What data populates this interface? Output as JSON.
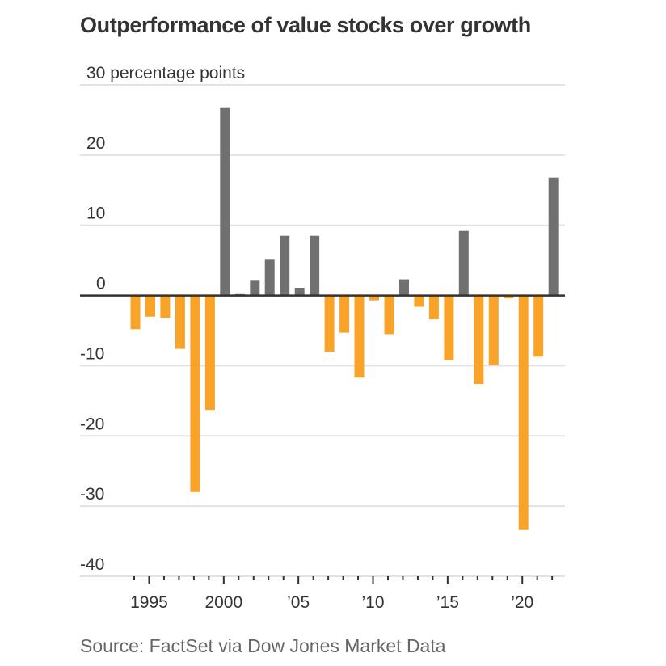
{
  "chart_data": {
    "type": "bar",
    "title": "Outperformance of value stocks over growth",
    "ylabel": "percentage points",
    "xlabel": "",
    "unit_label": "30 percentage points",
    "ylim": [
      -40,
      30
    ],
    "yticks": [
      30,
      20,
      10,
      0,
      -10,
      -20,
      -30,
      -40
    ],
    "ytick_labels": [
      "30 percentage points",
      "20",
      "10",
      "0",
      "-10",
      "-20",
      "-30",
      "-40"
    ],
    "xticks_labeled": [
      {
        "year": 1995,
        "label": "1995"
      },
      {
        "year": 2000,
        "label": "2000"
      },
      {
        "year": 2005,
        "label": "’05"
      },
      {
        "year": 2010,
        "label": "’10"
      },
      {
        "year": 2015,
        "label": "’15"
      },
      {
        "year": 2020,
        "label": "’20"
      }
    ],
    "grid": true,
    "categories": [
      1994,
      1995,
      1996,
      1997,
      1998,
      1999,
      2000,
      2001,
      2002,
      2003,
      2004,
      2005,
      2006,
      2007,
      2008,
      2009,
      2010,
      2011,
      2012,
      2013,
      2014,
      2015,
      2016,
      2017,
      2018,
      2019,
      2020,
      2021,
      2022
    ],
    "values": [
      -4.8,
      -3.0,
      -3.2,
      -7.6,
      -28.0,
      -16.3,
      26.7,
      0.2,
      2.1,
      5.1,
      8.5,
      1.1,
      8.5,
      -8.0,
      -5.3,
      -11.7,
      -0.7,
      -5.5,
      2.3,
      -1.6,
      -3.4,
      -9.2,
      9.2,
      -12.6,
      -9.9,
      -0.4,
      -33.4,
      -8.7,
      16.8
    ],
    "colors": {
      "positive": "#707070",
      "negative": "#F9A328",
      "axis": "#333333",
      "grid": "#E2E2E2"
    },
    "source": "Source: FactSet via Dow Jones Market Data"
  }
}
